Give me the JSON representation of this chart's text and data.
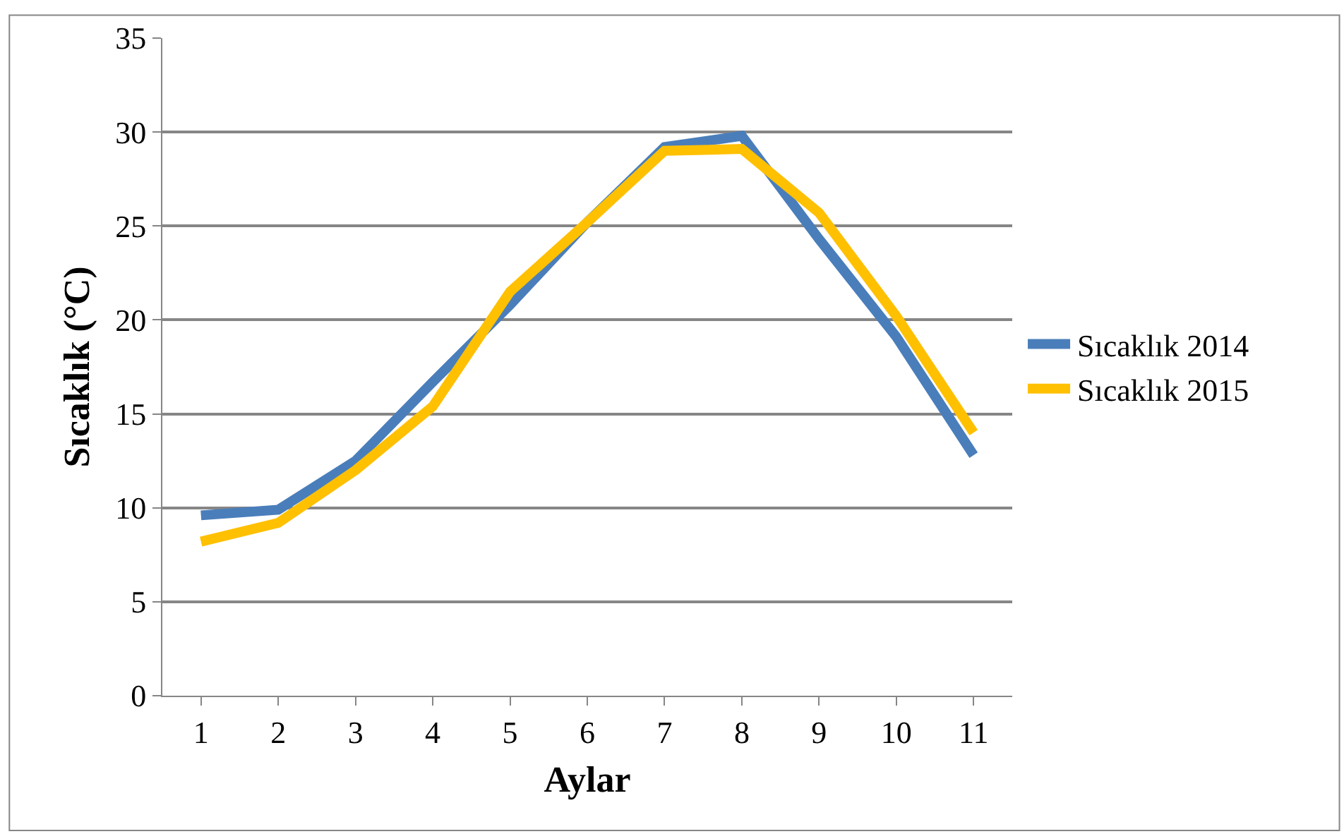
{
  "chart_data": {
    "type": "line",
    "xlabel": "Aylar",
    "ylabel": "Sıcaklık (°C)",
    "categories": [
      "1",
      "2",
      "3",
      "4",
      "5",
      "6",
      "7",
      "8",
      "9",
      "10",
      "11"
    ],
    "series": [
      {
        "name": "Sıcaklık 2014",
        "color": "#4a7ebb",
        "values": [
          9.6,
          9.9,
          12.5,
          16.7,
          20.8,
          25.2,
          29.2,
          29.8,
          24.3,
          19.1,
          12.8
        ]
      },
      {
        "name": "Sıcaklık 2015",
        "color": "#ffc000",
        "values": [
          8.2,
          9.2,
          12.0,
          15.4,
          21.5,
          25.2,
          29.0,
          29.1,
          25.7,
          20.2,
          14.0
        ]
      }
    ],
    "ylim": [
      0,
      35
    ],
    "yticks": [
      0,
      5,
      10,
      15,
      20,
      25,
      30,
      35
    ],
    "grid": "y",
    "legend": "right",
    "marker": "none",
    "line_style": "solid"
  }
}
